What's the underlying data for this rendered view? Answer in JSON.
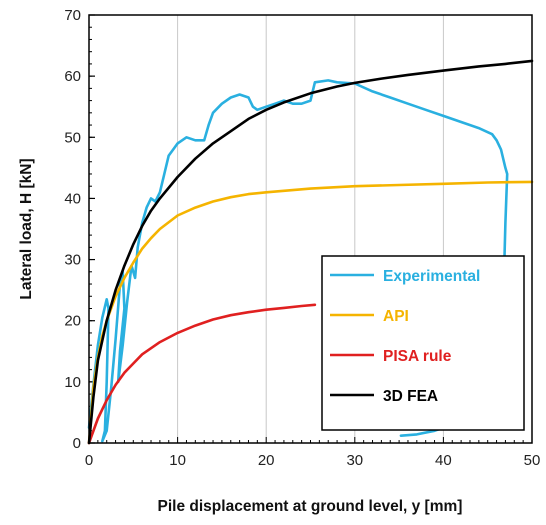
{
  "chart_data": {
    "type": "line",
    "title": "",
    "xlabel": "Pile displacement at ground level, y [mm]",
    "ylabel": "Lateral load, H [kN]",
    "xlim": [
      0,
      50
    ],
    "ylim": [
      0,
      70
    ],
    "xticks": [
      0,
      10,
      20,
      30,
      40,
      50
    ],
    "yticks": [
      0,
      10,
      20,
      30,
      40,
      50,
      60,
      70
    ],
    "grid": "vertical",
    "legend_position": "bottom-right",
    "series": [
      {
        "name": "Experimental",
        "color": "#2ab0e0",
        "points": [
          [
            0.0,
            2.5
          ],
          [
            0.5,
            9.5
          ],
          [
            1.0,
            16.0
          ],
          [
            1.5,
            20.5
          ],
          [
            2.0,
            23.5
          ],
          [
            2.2,
            22.0
          ],
          [
            2.0,
            10.0
          ],
          [
            1.8,
            2.0
          ],
          [
            1.5,
            0.3
          ],
          [
            2.0,
            2.0
          ],
          [
            2.5,
            9.0
          ],
          [
            3.0,
            17.0
          ],
          [
            3.5,
            26.0
          ],
          [
            3.8,
            28.0
          ],
          [
            4.0,
            22.0
          ],
          [
            3.5,
            15.0
          ],
          [
            3.3,
            10.0
          ],
          [
            3.8,
            16.0
          ],
          [
            4.3,
            23.0
          ],
          [
            4.8,
            29.0
          ],
          [
            5.2,
            27.0
          ],
          [
            5.5,
            32.0
          ],
          [
            6.0,
            36.0
          ],
          [
            6.5,
            38.5
          ],
          [
            7.0,
            40.0
          ],
          [
            7.5,
            39.5
          ],
          [
            8.0,
            41.0
          ],
          [
            8.5,
            44.0
          ],
          [
            9.0,
            47.0
          ],
          [
            9.5,
            48.0
          ],
          [
            10.0,
            49.0
          ],
          [
            11.0,
            50.0
          ],
          [
            12.0,
            49.5
          ],
          [
            13.0,
            49.5
          ],
          [
            13.5,
            52.0
          ],
          [
            14.0,
            54.0
          ],
          [
            15.0,
            55.5
          ],
          [
            16.0,
            56.5
          ],
          [
            17.0,
            57.0
          ],
          [
            18.0,
            56.5
          ],
          [
            18.5,
            55.0
          ],
          [
            19.0,
            54.5
          ],
          [
            20.0,
            55.0
          ],
          [
            21.0,
            55.5
          ],
          [
            22.0,
            56.0
          ],
          [
            23.0,
            55.5
          ],
          [
            24.0,
            55.5
          ],
          [
            25.0,
            56.0
          ],
          [
            25.5,
            59.0
          ],
          [
            27.0,
            59.3
          ],
          [
            28.0,
            59.0
          ],
          [
            30.0,
            58.8
          ],
          [
            32.0,
            57.5
          ],
          [
            34.0,
            56.5
          ],
          [
            36.0,
            55.5
          ],
          [
            38.0,
            54.5
          ],
          [
            40.0,
            53.5
          ],
          [
            42.0,
            52.5
          ],
          [
            44.0,
            51.5
          ],
          [
            45.5,
            50.5
          ],
          [
            46.0,
            49.5
          ],
          [
            46.5,
            48.0
          ],
          [
            47.0,
            45.0
          ],
          [
            47.2,
            44.0
          ],
          [
            47.0,
            36.0
          ],
          [
            46.7,
            20.0
          ],
          [
            46.0,
            12.0
          ],
          [
            44.5,
            6.0
          ],
          [
            42.0,
            3.5
          ],
          [
            39.0,
            2.0
          ],
          [
            37.0,
            1.4
          ],
          [
            35.2,
            1.2
          ]
        ]
      },
      {
        "name": "API",
        "color": "#f5b400",
        "points": [
          [
            0.0,
            0.0
          ],
          [
            0.5,
            9.0
          ],
          [
            1.0,
            14.0
          ],
          [
            1.5,
            17.5
          ],
          [
            2.0,
            20.0
          ],
          [
            3.0,
            24.0
          ],
          [
            4.0,
            27.0
          ],
          [
            5.0,
            29.5
          ],
          [
            6.0,
            31.8
          ],
          [
            7.0,
            33.5
          ],
          [
            8.0,
            35.0
          ],
          [
            10.0,
            37.2
          ],
          [
            12.0,
            38.5
          ],
          [
            14.0,
            39.5
          ],
          [
            16.0,
            40.2
          ],
          [
            18.0,
            40.7
          ],
          [
            20.0,
            41.0
          ],
          [
            25.0,
            41.6
          ],
          [
            30.0,
            42.0
          ],
          [
            35.0,
            42.2
          ],
          [
            40.0,
            42.4
          ],
          [
            45.0,
            42.6
          ],
          [
            50.0,
            42.7
          ]
        ]
      },
      {
        "name": "PISA rule",
        "color": "#e02020",
        "points": [
          [
            0.0,
            0.0
          ],
          [
            1.0,
            4.0
          ],
          [
            2.0,
            7.0
          ],
          [
            3.0,
            9.5
          ],
          [
            4.0,
            11.5
          ],
          [
            5.0,
            13.0
          ],
          [
            6.0,
            14.5
          ],
          [
            8.0,
            16.5
          ],
          [
            10.0,
            18.0
          ],
          [
            12.0,
            19.2
          ],
          [
            14.0,
            20.2
          ],
          [
            16.0,
            20.9
          ],
          [
            18.0,
            21.4
          ],
          [
            20.0,
            21.8
          ],
          [
            22.0,
            22.1
          ],
          [
            24.0,
            22.4
          ],
          [
            25.5,
            22.6
          ]
        ]
      },
      {
        "name": "3D FEA",
        "color": "#000000",
        "points": [
          [
            0.0,
            0.0
          ],
          [
            0.5,
            7.5
          ],
          [
            1.0,
            13.5
          ],
          [
            2.0,
            20.0
          ],
          [
            3.0,
            25.0
          ],
          [
            4.0,
            29.0
          ],
          [
            5.0,
            32.5
          ],
          [
            6.0,
            35.5
          ],
          [
            7.0,
            38.0
          ],
          [
            8.0,
            40.0
          ],
          [
            10.0,
            43.5
          ],
          [
            12.0,
            46.5
          ],
          [
            14.0,
            49.0
          ],
          [
            16.0,
            51.0
          ],
          [
            18.0,
            53.0
          ],
          [
            20.0,
            54.5
          ],
          [
            22.0,
            55.7
          ],
          [
            25.0,
            57.2
          ],
          [
            28.0,
            58.3
          ],
          [
            30.0,
            58.9
          ],
          [
            33.0,
            59.6
          ],
          [
            36.0,
            60.2
          ],
          [
            40.0,
            60.9
          ],
          [
            44.0,
            61.6
          ],
          [
            47.0,
            62.0
          ],
          [
            50.0,
            62.5
          ]
        ]
      }
    ]
  }
}
